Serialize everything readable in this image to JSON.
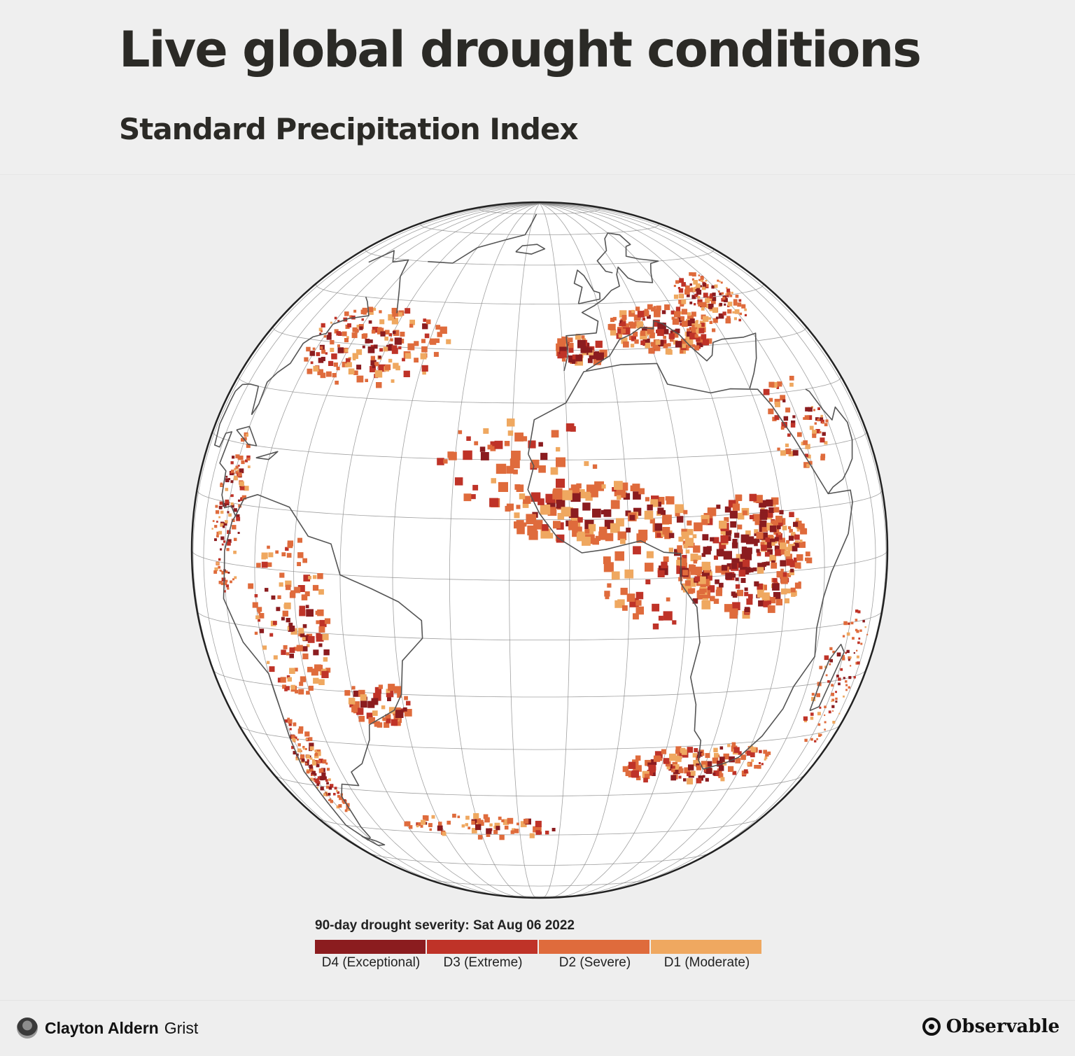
{
  "header": {
    "title": "Live global drought conditions",
    "subtitle": "Standard Precipitation Index"
  },
  "map": {
    "projection": "orthographic",
    "globe_fill": "#ffffff",
    "graticule_color": "#8a8a8a",
    "coastline_color": "#555555",
    "outline_color": "#222222"
  },
  "legend": {
    "title": "90-day drought severity: Sat Aug 06 2022",
    "items": [
      {
        "label": "D4 (Exceptional)",
        "color": "#8b1c1f"
      },
      {
        "label": "D3 (Extreme)",
        "color": "#bf3328"
      },
      {
        "label": "D2 (Severe)",
        "color": "#df6b3c"
      },
      {
        "label": "D1 (Moderate)",
        "color": "#efa860"
      }
    ]
  },
  "footer": {
    "author_name": "Clayton Aldern",
    "author_org": "Grist",
    "brand": "Observable"
  }
}
